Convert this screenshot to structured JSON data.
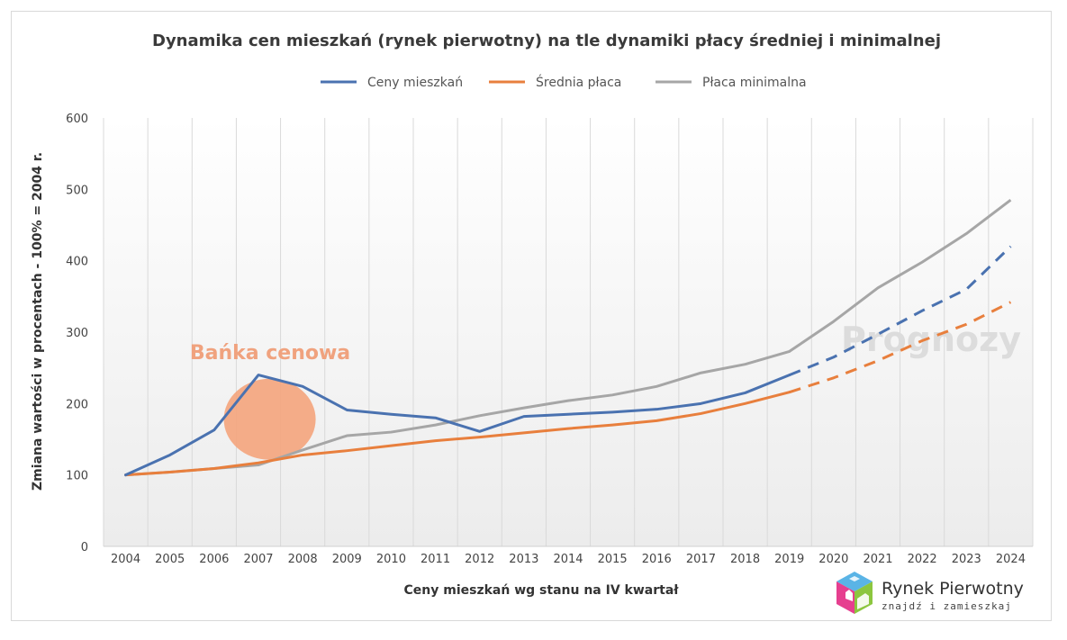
{
  "chart_data": {
    "type": "line",
    "title": "Dynamika cen mieszkań (rynek pierwotny) na tle dynamiki płacy średniej i minimalnej",
    "xlabel": "Ceny mieszkań wg stanu na IV kwartał",
    "ylabel": "Zmiana wartości w procentach - 100% = 2004 r.",
    "ylim": [
      0,
      600
    ],
    "yticks": [
      0,
      100,
      200,
      300,
      400,
      500,
      600
    ],
    "categories": [
      "2004",
      "2005",
      "2006",
      "2007",
      "2008",
      "2009",
      "2010",
      "2011",
      "2012",
      "2013",
      "2014",
      "2015",
      "2016",
      "2017",
      "2018",
      "2019",
      "2020",
      "2021",
      "2022",
      "2023",
      "2024"
    ],
    "forecast_from": "2019",
    "legend_position": "top",
    "grid": "vertical",
    "series": [
      {
        "name": "Ceny mieszkań",
        "color": "#4a72b0",
        "values": [
          100,
          128,
          163,
          240,
          224,
          191,
          185,
          180,
          161,
          182,
          185,
          188,
          192,
          200,
          215,
          240,
          265,
          297,
          330,
          360,
          420
        ]
      },
      {
        "name": "Średnia płaca",
        "color": "#e87f3d",
        "values": [
          100,
          104,
          109,
          117,
          128,
          134,
          141,
          148,
          153,
          159,
          165,
          170,
          176,
          186,
          200,
          216,
          236,
          260,
          288,
          311,
          342
        ]
      },
      {
        "name": "Płaca minimalna",
        "color": "#a6a6a6",
        "values": [
          100,
          104,
          109,
          114,
          135,
          155,
          160,
          170,
          183,
          194,
          204,
          212,
          224,
          243,
          255,
          273,
          315,
          362,
          398,
          438,
          485
        ]
      }
    ],
    "annotations": {
      "bubble_label": "Bańka cenowa",
      "bubble_color": "#f4a47c",
      "forecast_label": "Prognozy"
    }
  },
  "logo": {
    "name": "Rynek Pierwotny",
    "tagline": "znajdź i zamieszkaj"
  }
}
